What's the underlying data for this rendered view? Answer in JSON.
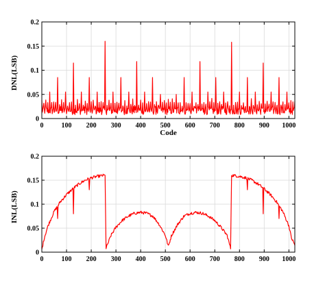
{
  "chart_data": [
    {
      "type": "line",
      "title": "",
      "xlabel": "Code",
      "ylabel": "DNL(LSB)",
      "xlim": [
        0,
        1024
      ],
      "ylim": [
        0,
        0.2
      ],
      "xticks": [
        0,
        100,
        200,
        300,
        400,
        500,
        600,
        700,
        800,
        900,
        1000
      ],
      "yticks": [
        0,
        0.05,
        0.1,
        0.15,
        0.2
      ],
      "ytick_labels": [
        "0",
        "0.05",
        "0.1",
        "0.15",
        "0.2"
      ],
      "grid": true,
      "legend": "none",
      "color": "#ff0000",
      "baseline_band": [
        0.008,
        0.025
      ],
      "spike_interval": 16,
      "spikes": [
        {
          "x": 64,
          "y": 0.085
        },
        {
          "x": 128,
          "y": 0.115
        },
        {
          "x": 192,
          "y": 0.085
        },
        {
          "x": 256,
          "y": 0.16
        },
        {
          "x": 320,
          "y": 0.085
        },
        {
          "x": 384,
          "y": 0.118
        },
        {
          "x": 448,
          "y": 0.085
        },
        {
          "x": 576,
          "y": 0.085
        },
        {
          "x": 640,
          "y": 0.118
        },
        {
          "x": 704,
          "y": 0.085
        },
        {
          "x": 768,
          "y": 0.158
        },
        {
          "x": 832,
          "y": 0.085
        },
        {
          "x": 896,
          "y": 0.115
        },
        {
          "x": 960,
          "y": 0.085
        },
        {
          "x": 32,
          "y": 0.055
        },
        {
          "x": 96,
          "y": 0.055
        },
        {
          "x": 160,
          "y": 0.055
        },
        {
          "x": 224,
          "y": 0.055
        },
        {
          "x": 288,
          "y": 0.055
        },
        {
          "x": 352,
          "y": 0.055
        },
        {
          "x": 416,
          "y": 0.055
        },
        {
          "x": 480,
          "y": 0.05
        },
        {
          "x": 544,
          "y": 0.05
        },
        {
          "x": 608,
          "y": 0.055
        },
        {
          "x": 672,
          "y": 0.055
        },
        {
          "x": 736,
          "y": 0.055
        },
        {
          "x": 800,
          "y": 0.055
        },
        {
          "x": 864,
          "y": 0.055
        },
        {
          "x": 928,
          "y": 0.055
        },
        {
          "x": 992,
          "y": 0.055
        }
      ]
    },
    {
      "type": "line",
      "title": "",
      "xlabel": "",
      "ylabel": "INL(LSB)",
      "xlim": [
        0,
        1024
      ],
      "ylim": [
        0,
        0.2
      ],
      "xticks": [
        0,
        100,
        200,
        300,
        400,
        500,
        600,
        700,
        800,
        900,
        1000
      ],
      "yticks": [
        0,
        0.05,
        0.1,
        0.15,
        0.2
      ],
      "ytick_labels": [
        "0",
        "0.05",
        "0.1",
        "0.15",
        "0.2"
      ],
      "grid": true,
      "legend": "none",
      "color": "#ff0000",
      "x": [
        0,
        10,
        25,
        50,
        75,
        100,
        125,
        150,
        175,
        200,
        225,
        250,
        256,
        260,
        280,
        300,
        325,
        350,
        375,
        400,
        425,
        450,
        475,
        500,
        512,
        525,
        550,
        575,
        600,
        625,
        650,
        675,
        700,
        725,
        750,
        764,
        768,
        775,
        800,
        825,
        850,
        875,
        900,
        925,
        950,
        975,
        1000,
        1010,
        1024
      ],
      "y": [
        0.005,
        0.03,
        0.055,
        0.085,
        0.105,
        0.12,
        0.132,
        0.142,
        0.15,
        0.155,
        0.158,
        0.16,
        0.16,
        0.008,
        0.035,
        0.052,
        0.066,
        0.075,
        0.081,
        0.083,
        0.081,
        0.075,
        0.058,
        0.035,
        0.012,
        0.035,
        0.058,
        0.075,
        0.081,
        0.083,
        0.081,
        0.075,
        0.066,
        0.052,
        0.035,
        0.008,
        0.16,
        0.16,
        0.158,
        0.155,
        0.15,
        0.142,
        0.132,
        0.12,
        0.105,
        0.085,
        0.055,
        0.03,
        0.015
      ],
      "dips": [
        {
          "x": 64,
          "y": 0.07
        },
        {
          "x": 128,
          "y": 0.08
        },
        {
          "x": 192,
          "y": 0.13
        },
        {
          "x": 832,
          "y": 0.13
        },
        {
          "x": 896,
          "y": 0.08
        },
        {
          "x": 960,
          "y": 0.07
        }
      ]
    }
  ]
}
